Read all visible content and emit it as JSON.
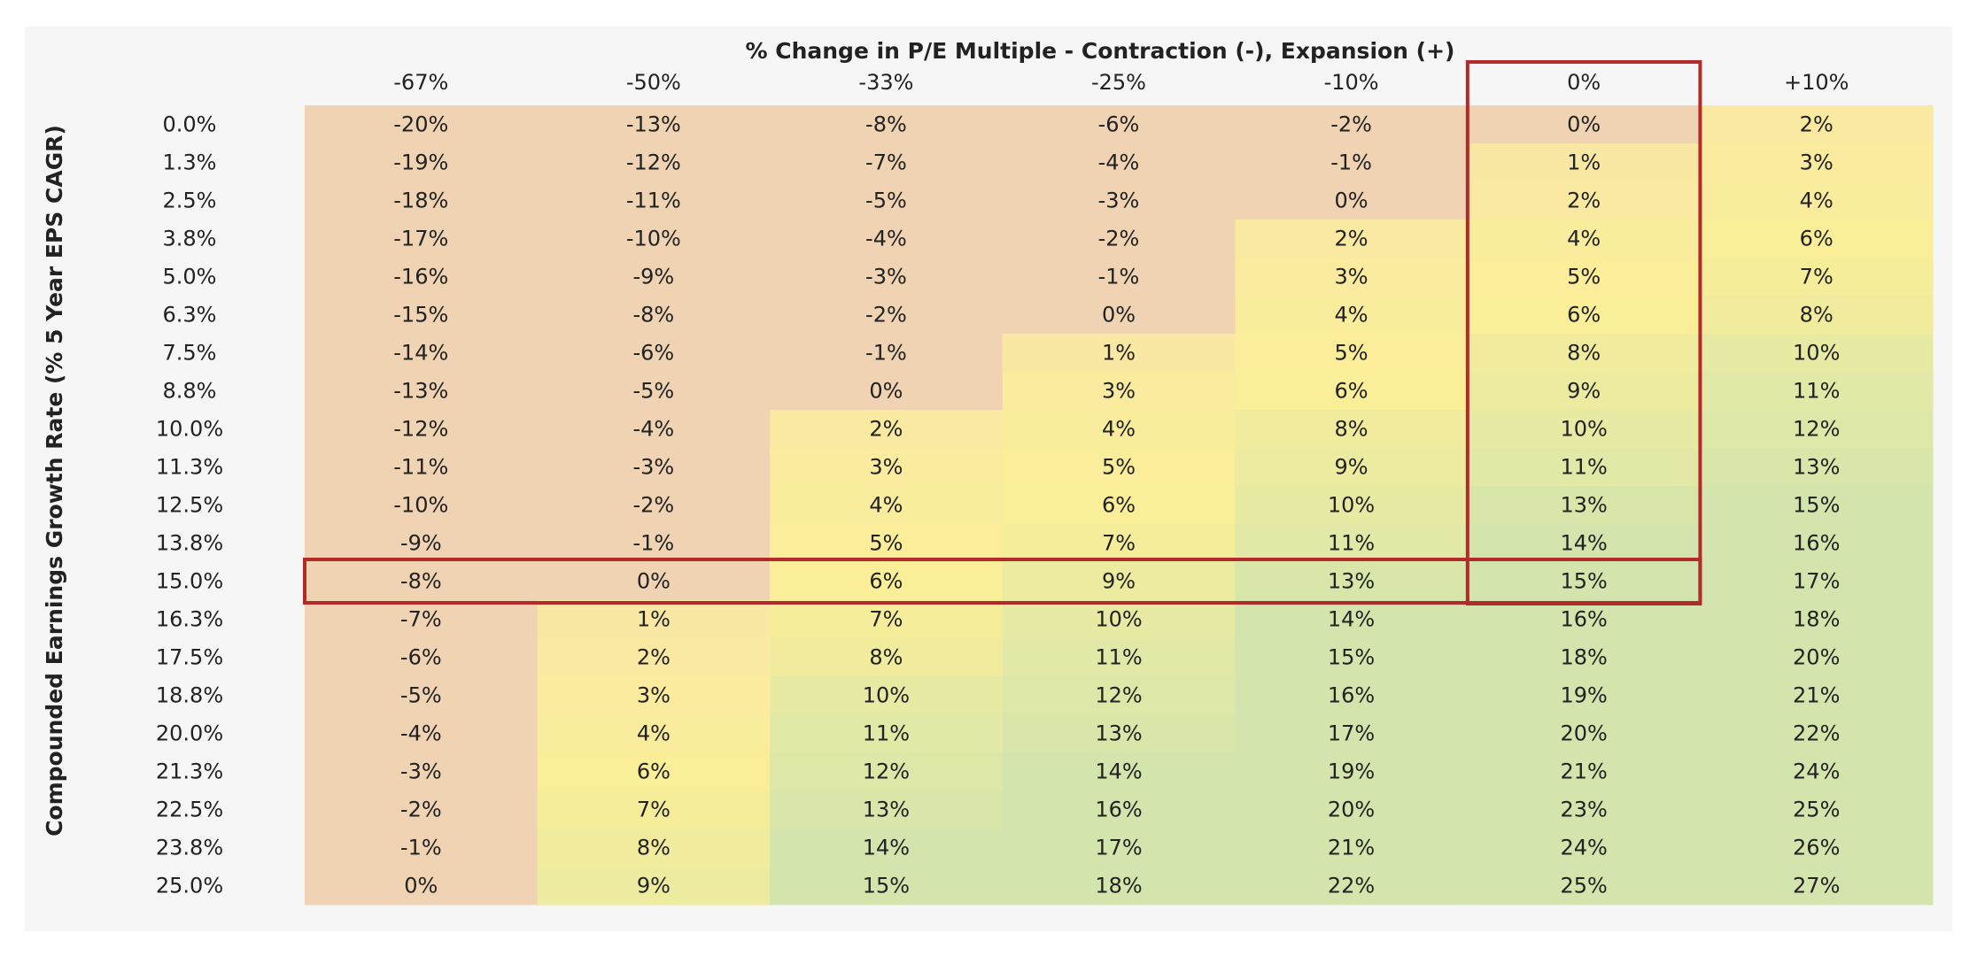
{
  "chart_data": {
    "type": "heatmap",
    "title": "% Change in P/E Multiple - Contraction (-), Expansion (+)",
    "ylabel": "Compounded Earnings Growth Rate (% 5 Year EPS CAGR)",
    "columns": [
      "-67%",
      "-50%",
      "-33%",
      "-25%",
      "-10%",
      "0%",
      "+10%"
    ],
    "rows": [
      "0.0%",
      "1.3%",
      "2.5%",
      "3.8%",
      "5.0%",
      "6.3%",
      "7.5%",
      "8.8%",
      "10.0%",
      "11.3%",
      "12.5%",
      "13.8%",
      "15.0%",
      "16.3%",
      "17.5%",
      "18.8%",
      "20.0%",
      "21.3%",
      "22.5%",
      "23.8%",
      "25.0%"
    ],
    "values": [
      [
        -20,
        -13,
        -8,
        -6,
        -2,
        0,
        2
      ],
      [
        -19,
        -12,
        -7,
        -4,
        -1,
        1,
        3
      ],
      [
        -18,
        -11,
        -5,
        -3,
        0,
        2,
        4
      ],
      [
        -17,
        -10,
        -4,
        -2,
        2,
        4,
        6
      ],
      [
        -16,
        -9,
        -3,
        -1,
        3,
        5,
        7
      ],
      [
        -15,
        -8,
        -2,
        0,
        4,
        6,
        8
      ],
      [
        -14,
        -6,
        -1,
        1,
        5,
        8,
        10
      ],
      [
        -13,
        -5,
        0,
        3,
        6,
        9,
        11
      ],
      [
        -12,
        -4,
        2,
        4,
        8,
        10,
        12
      ],
      [
        -11,
        -3,
        3,
        5,
        9,
        11,
        13
      ],
      [
        -10,
        -2,
        4,
        6,
        10,
        13,
        15
      ],
      [
        -9,
        -1,
        5,
        7,
        11,
        14,
        16
      ],
      [
        -8,
        0,
        6,
        9,
        13,
        15,
        17
      ],
      [
        -7,
        1,
        7,
        10,
        14,
        16,
        18
      ],
      [
        -6,
        2,
        8,
        11,
        15,
        18,
        20
      ],
      [
        -5,
        3,
        10,
        12,
        16,
        19,
        21
      ],
      [
        -4,
        4,
        11,
        13,
        17,
        20,
        22
      ],
      [
        -3,
        6,
        12,
        14,
        19,
        21,
        24
      ],
      [
        -2,
        7,
        13,
        16,
        20,
        23,
        25
      ],
      [
        -1,
        8,
        14,
        17,
        21,
        24,
        26
      ],
      [
        0,
        9,
        15,
        18,
        22,
        25,
        27
      ]
    ],
    "value_suffix": "%",
    "highlight_column": "0%",
    "highlight_row": "15.0%",
    "highlight_color": "#b22a2a",
    "colors": {
      "negative": "#efd3b3",
      "low": "#f8e7a6",
      "mid": "#fbee98",
      "high": "#d3e5ad",
      "background": "#f6f6f6",
      "text": "#222222"
    }
  }
}
